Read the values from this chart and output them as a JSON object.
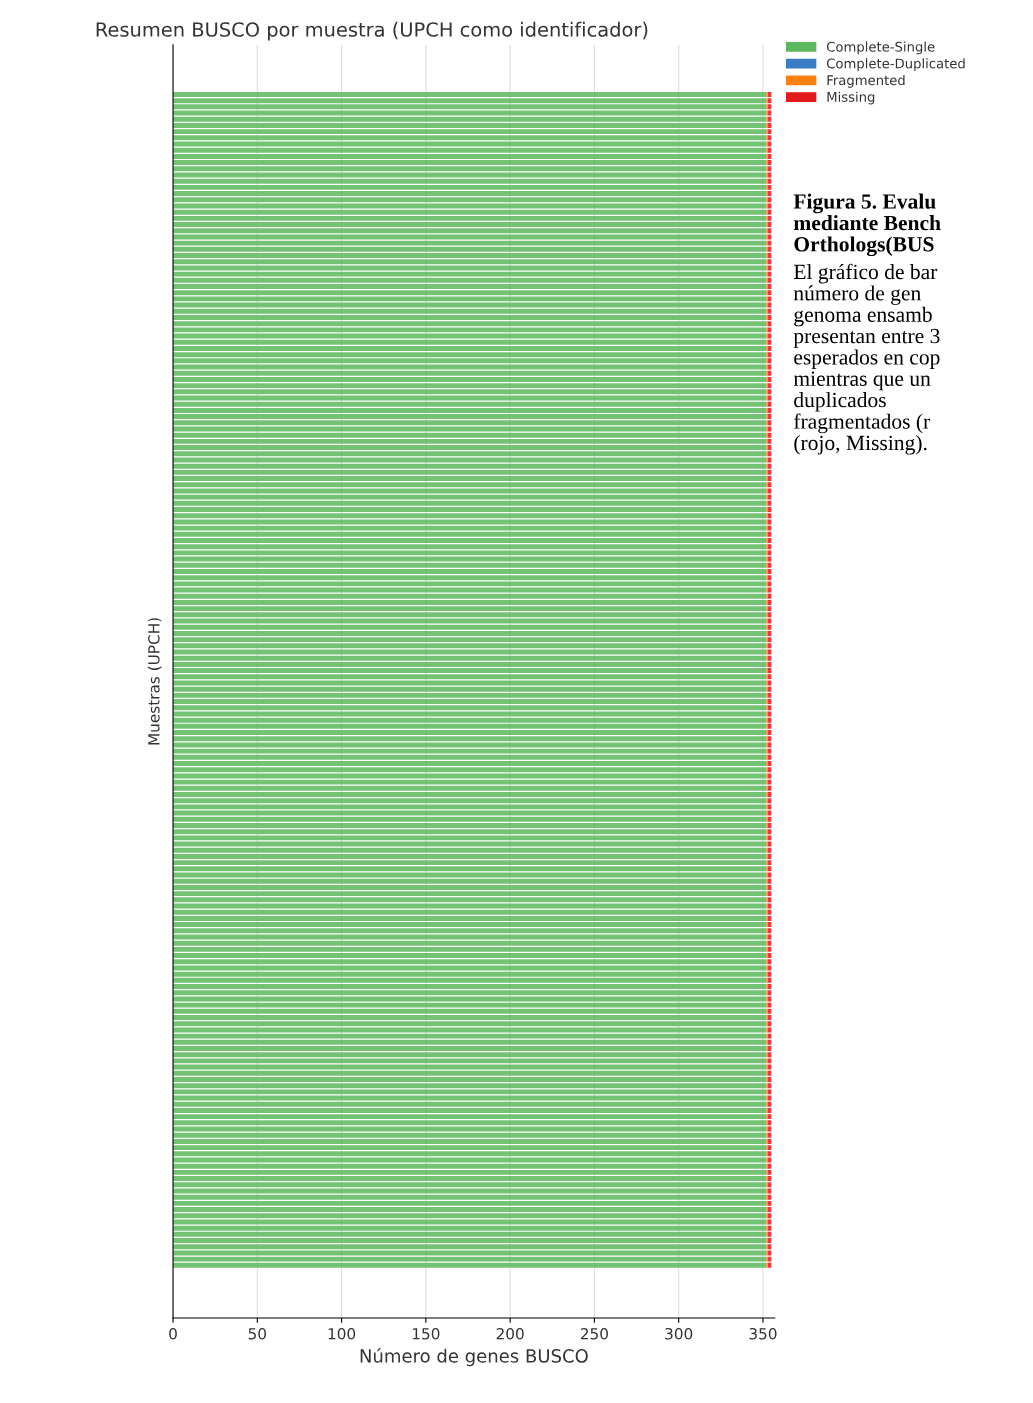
{
  "chart_data": {
    "type": "bar",
    "orientation": "horizontal",
    "stacked": true,
    "title": "Resumen BUSCO por muestra (UPCH como identificador)",
    "xlabel": "Número de genes BUSCO",
    "ylabel": "Muestras (UPCH)",
    "categories": [
      null,
      null,
      null,
      null,
      null,
      null,
      null,
      null,
      null,
      null,
      null,
      null,
      null,
      null,
      null,
      null,
      null,
      null,
      null,
      null,
      null,
      null,
      null,
      null,
      null,
      null,
      null,
      null,
      null,
      null,
      null,
      null,
      null,
      null,
      null,
      null,
      null,
      null,
      null,
      null,
      null,
      null,
      null,
      null,
      null,
      null,
      null,
      null,
      null,
      null,
      null,
      null,
      null,
      null,
      null,
      null,
      null,
      null,
      null,
      null,
      null,
      null,
      null,
      null,
      null,
      null,
      null,
      null,
      null,
      null,
      null,
      null,
      null,
      null,
      null,
      null,
      null,
      null,
      null,
      null,
      null,
      null,
      null,
      null,
      null,
      null,
      null,
      null,
      null,
      null,
      null,
      null,
      null,
      null,
      null,
      null,
      null,
      null,
      null,
      null,
      null,
      null,
      null,
      null,
      null,
      null,
      null,
      null,
      null,
      null,
      null,
      null,
      null,
      null,
      null,
      null,
      null,
      null,
      null,
      null,
      null,
      null,
      null,
      null,
      null,
      null,
      null,
      null,
      null,
      null,
      null,
      null,
      null,
      null,
      null,
      null,
      null,
      null,
      null,
      null,
      null,
      null,
      null,
      null,
      null,
      null,
      null,
      null,
      null,
      null,
      null,
      null,
      null,
      null,
      null,
      null,
      null,
      null,
      null,
      null,
      null,
      null,
      null,
      null,
      null,
      null,
      null,
      null,
      null,
      null,
      null,
      null,
      null,
      null,
      null,
      null,
      null,
      null,
      null,
      null,
      null,
      null,
      null,
      null,
      null,
      null,
      null,
      null,
      null,
      null
    ],
    "series": [
      {
        "name": "Complete-Single",
        "color": "#5cb85c",
        "values": [
          352,
          352,
          352,
          352,
          352,
          352,
          352,
          352,
          352,
          352,
          352,
          352,
          352,
          352,
          352,
          352,
          352,
          352,
          352,
          352,
          352,
          352,
          352,
          352,
          352,
          352,
          352,
          352,
          352,
          352,
          352,
          352,
          352,
          352,
          352,
          352,
          352,
          352,
          352,
          352,
          352,
          352,
          352,
          352,
          352,
          352,
          352,
          352,
          352,
          352,
          352,
          352,
          352,
          352,
          352,
          352,
          352,
          352,
          352,
          352,
          352,
          352,
          352,
          352,
          352,
          352,
          352,
          352,
          352,
          352,
          352,
          352,
          352,
          352,
          352,
          352,
          352,
          352,
          352,
          352,
          352,
          352,
          352,
          352,
          352,
          352,
          352,
          352,
          352,
          352,
          352,
          352,
          352,
          352,
          352,
          352,
          352,
          352,
          352,
          352,
          352,
          352,
          352,
          352,
          352,
          352,
          352,
          352,
          352,
          352,
          352,
          352,
          352,
          352,
          352,
          352,
          352,
          352,
          352,
          352,
          352,
          352,
          352,
          352,
          352,
          352,
          352,
          352,
          352,
          352,
          352,
          352,
          352,
          352,
          352,
          352,
          352,
          352,
          352,
          352,
          352,
          352,
          352,
          352,
          352,
          352,
          352,
          352,
          352,
          352,
          352,
          352,
          352,
          352,
          352,
          352,
          352,
          352,
          352,
          352,
          352,
          352,
          352,
          352,
          352,
          352,
          352,
          352,
          352,
          352,
          352,
          352,
          352,
          352,
          352,
          352,
          352,
          352,
          352,
          352,
          352,
          352,
          352,
          352,
          352,
          352,
          352,
          352,
          352,
          352
        ]
      },
      {
        "name": "Complete-Duplicated",
        "color": "#3a7dc4",
        "values": [
          0,
          0,
          0,
          0,
          0,
          0,
          0,
          0,
          0,
          0,
          0,
          0,
          0,
          0,
          0,
          0,
          0,
          0,
          0,
          0,
          0,
          0,
          0,
          0,
          0,
          0,
          0,
          0,
          0,
          0,
          0,
          0,
          0,
          0,
          0,
          0,
          0,
          0,
          0,
          0,
          0,
          0,
          0,
          0,
          0,
          0,
          0,
          0,
          0,
          0,
          0,
          0,
          0,
          0,
          0,
          0,
          0,
          0,
          0,
          0,
          0,
          0,
          0,
          0,
          0,
          0,
          0,
          0,
          0,
          0,
          0,
          0,
          0,
          0,
          0,
          0,
          0,
          0,
          0,
          0,
          0,
          0,
          0,
          0,
          0,
          0,
          0,
          0,
          0,
          0,
          0,
          0,
          0,
          0,
          0,
          0,
          0,
          0,
          0,
          0,
          0,
          0,
          0,
          0,
          0,
          0,
          0,
          0,
          0,
          0,
          0,
          0,
          0,
          0,
          0,
          0,
          0,
          0,
          0,
          0,
          0,
          0,
          0,
          0,
          0,
          0,
          0,
          0,
          0,
          0,
          0,
          0,
          0,
          0,
          0,
          0,
          0,
          0,
          0,
          0,
          0,
          0,
          0,
          0,
          0,
          0,
          0,
          0,
          0,
          0,
          0,
          0,
          0,
          0,
          0,
          0,
          0,
          0,
          0,
          0,
          0,
          0,
          0,
          0,
          0,
          0,
          0,
          0,
          0,
          0,
          0,
          0,
          0,
          0,
          0,
          0,
          0,
          0,
          0,
          0,
          0,
          0,
          0,
          0,
          0,
          0,
          0,
          0,
          0,
          0
        ]
      },
      {
        "name": "Fragmented",
        "color": "#ff7f0e",
        "values": [
          1,
          1,
          1,
          1,
          1,
          1,
          1,
          1,
          1,
          1,
          1,
          1,
          1,
          1,
          1,
          1,
          1,
          1,
          1,
          1,
          1,
          1,
          1,
          1,
          1,
          1,
          1,
          1,
          1,
          1,
          1,
          1,
          1,
          1,
          1,
          1,
          1,
          1,
          1,
          1,
          1,
          1,
          1,
          1,
          1,
          1,
          1,
          1,
          1,
          1,
          1,
          1,
          1,
          1,
          1,
          1,
          1,
          1,
          1,
          1,
          1,
          1,
          1,
          1,
          1,
          1,
          1,
          1,
          1,
          1,
          1,
          1,
          1,
          1,
          1,
          1,
          1,
          1,
          1,
          1,
          1,
          1,
          1,
          1,
          1,
          1,
          1,
          1,
          1,
          1,
          1,
          1,
          1,
          1,
          1,
          1,
          1,
          1,
          1,
          1,
          1,
          1,
          1,
          1,
          1,
          1,
          1,
          1,
          1,
          1,
          1,
          1,
          1,
          1,
          1,
          1,
          1,
          1,
          1,
          1,
          1,
          1,
          1,
          1,
          1,
          1,
          1,
          1,
          1,
          1,
          1,
          1,
          1,
          1,
          1,
          1,
          1,
          1,
          1,
          1,
          1,
          1,
          1,
          1,
          1,
          1,
          1,
          1,
          1,
          1,
          1,
          1,
          1,
          1,
          1,
          1,
          1,
          1,
          1,
          1,
          1,
          1,
          1,
          1,
          1,
          1,
          1,
          1,
          1,
          1,
          1,
          1,
          1,
          1,
          1,
          1,
          1,
          1,
          1,
          1,
          1,
          1,
          1,
          1,
          1,
          1,
          1,
          1,
          1,
          1
        ]
      },
      {
        "name": "Missing",
        "color": "#e31a1c",
        "values": [
          2,
          2,
          2,
          2,
          2,
          2,
          2,
          2,
          2,
          2,
          2,
          2,
          2,
          2,
          2,
          2,
          2,
          2,
          2,
          2,
          2,
          2,
          2,
          2,
          2,
          2,
          2,
          2,
          2,
          2,
          2,
          2,
          2,
          2,
          2,
          2,
          2,
          2,
          2,
          2,
          2,
          2,
          2,
          2,
          2,
          2,
          2,
          2,
          2,
          2,
          2,
          2,
          2,
          2,
          2,
          2,
          2,
          2,
          2,
          2,
          2,
          2,
          2,
          2,
          2,
          2,
          2,
          2,
          2,
          2,
          2,
          2,
          2,
          2,
          2,
          2,
          2,
          2,
          2,
          2,
          2,
          2,
          2,
          2,
          2,
          2,
          2,
          2,
          2,
          2,
          2,
          2,
          2,
          2,
          2,
          2,
          2,
          2,
          2,
          2,
          2,
          2,
          2,
          2,
          2,
          2,
          2,
          2,
          2,
          2,
          2,
          2,
          2,
          2,
          2,
          2,
          2,
          2,
          2,
          2,
          2,
          2,
          2,
          2,
          2,
          2,
          2,
          2,
          2,
          2,
          2,
          2,
          2,
          2,
          2,
          2,
          2,
          2,
          2,
          2,
          2,
          2,
          2,
          2,
          2,
          2,
          2,
          2,
          2,
          2,
          2,
          2,
          2,
          2,
          2,
          2,
          2,
          2,
          2,
          2,
          2,
          2,
          2,
          2,
          2,
          2,
          2,
          2,
          2,
          2,
          2,
          2,
          2,
          2,
          2,
          2,
          2,
          2,
          2,
          2,
          2,
          2,
          2,
          2,
          2,
          2,
          2,
          2,
          2,
          2
        ]
      }
    ],
    "xlim": [
      0,
      357
    ],
    "xticks": [
      0,
      50,
      100,
      150,
      200,
      250,
      300,
      350
    ],
    "grid": "x",
    "legend": "top right",
    "annotations": [
      "Figura 5. Evalu\nmediante Bench\nOrthologs(BUS",
      "El gráfico de bar\nnúmero de gen\ngenoma ensamb\npresentan entre 3\nesperados en cop\nmientras que un\nduplicados\nfragmentados (r\n(rojo, Missing)."
    ]
  }
}
